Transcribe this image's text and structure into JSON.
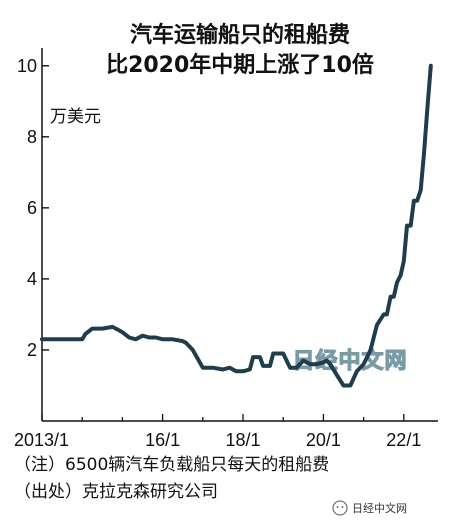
{
  "chart_data": {
    "type": "line",
    "title": [
      "汽车运输船只的租船费",
      "比2020年中期上涨了10倍"
    ],
    "ylabel": "万美元",
    "ylim": [
      0,
      10.5
    ],
    "yticks": [
      2,
      4,
      6,
      8,
      10
    ],
    "xlim": [
      2013.0,
      2022.85
    ],
    "xticks": [
      2013,
      2016,
      2018,
      2020,
      2022
    ],
    "xtick_labels": [
      "2013/1",
      "16/1",
      "18/1",
      "20/1",
      "22/1"
    ],
    "grid": false,
    "line_color": "#1f3d4c",
    "series": [
      {
        "x": [
          2013.0,
          2013.3,
          2013.7,
          2014.0,
          2014.08,
          2014.25,
          2014.5,
          2014.75,
          2014.92,
          2015.0,
          2015.17,
          2015.33,
          2015.5,
          2015.67,
          2015.83,
          2016.0,
          2016.25,
          2016.5,
          2016.58,
          2016.75,
          2017.0,
          2017.25,
          2017.5,
          2017.67,
          2017.83,
          2018.0,
          2018.17,
          2018.25,
          2018.42,
          2018.5,
          2018.67,
          2018.75,
          2018.92,
          2019.0,
          2019.17,
          2019.33,
          2019.5,
          2019.67,
          2019.83,
          2020.0,
          2020.08,
          2020.17,
          2020.33,
          2020.5,
          2020.58,
          2020.67,
          2020.83,
          2021.0,
          2021.17,
          2021.33,
          2021.5,
          2021.58,
          2021.67,
          2021.75,
          2021.83,
          2021.92,
          2022.0,
          2022.08,
          2022.17,
          2022.25,
          2022.33,
          2022.42,
          2022.5,
          2022.58,
          2022.67
        ],
        "y": [
          2.3,
          2.3,
          2.3,
          2.3,
          2.45,
          2.6,
          2.6,
          2.65,
          2.55,
          2.5,
          2.35,
          2.3,
          2.4,
          2.35,
          2.35,
          2.3,
          2.3,
          2.25,
          2.2,
          2.0,
          1.5,
          1.5,
          1.45,
          1.5,
          1.4,
          1.4,
          1.45,
          1.8,
          1.8,
          1.55,
          1.55,
          1.9,
          1.9,
          1.9,
          1.5,
          1.5,
          1.7,
          1.6,
          1.6,
          1.65,
          1.7,
          1.6,
          1.3,
          1.0,
          1.0,
          1.0,
          1.4,
          1.6,
          2.0,
          2.7,
          3.0,
          3.0,
          3.5,
          3.5,
          3.9,
          4.1,
          4.5,
          5.5,
          5.5,
          6.2,
          6.2,
          6.5,
          7.5,
          8.7,
          10.0
        ]
      }
    ],
    "notes": [
      "（注）6500辆汽车负载船只每天的租船费",
      "（出处）克拉克森研究公司"
    ],
    "watermark": "日经中文网",
    "source_badge": "日经中文网"
  }
}
